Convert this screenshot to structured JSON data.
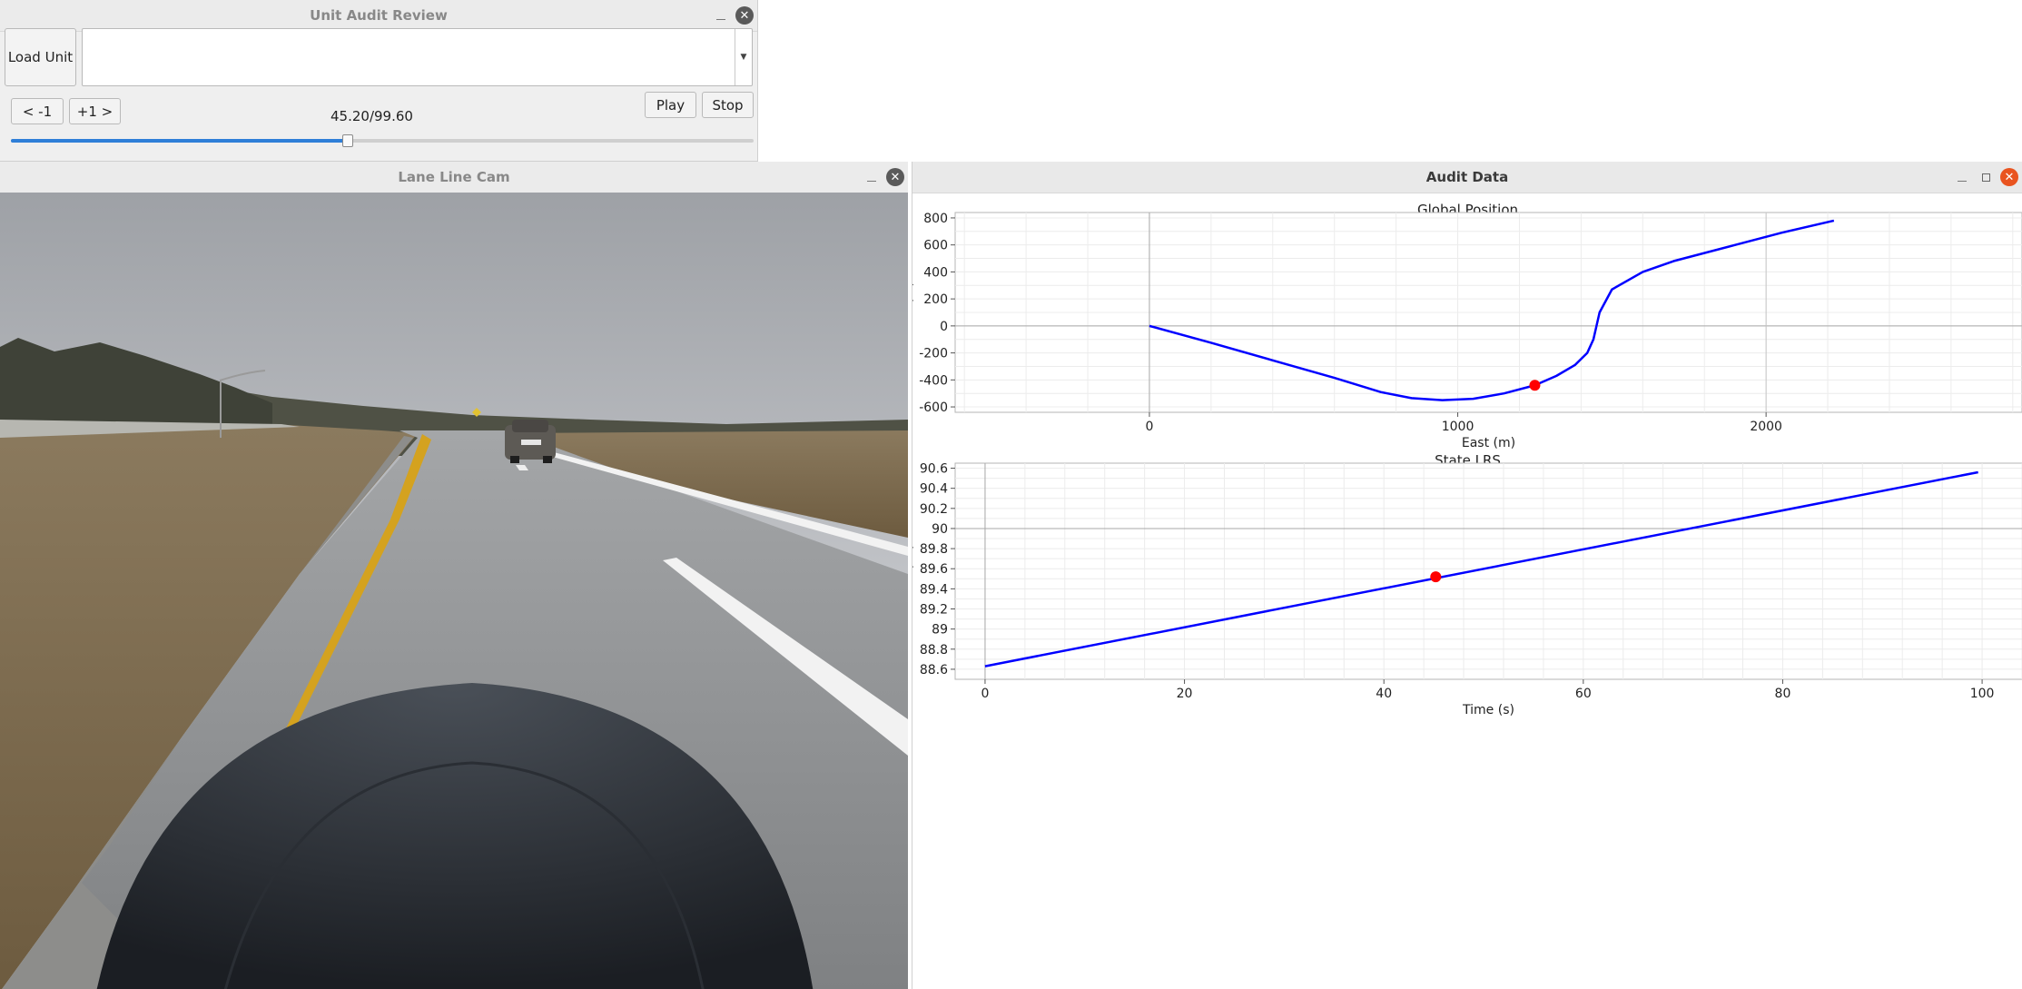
{
  "unit_audit": {
    "title": "Unit Audit Review",
    "load_button": "Load Unit",
    "unit_selector_value": "",
    "prev_button": "< -1",
    "next_button": "+1 >",
    "time_readout": "45.20/99.60",
    "play_button": "Play",
    "stop_button": "Stop",
    "slider": {
      "current": 45.2,
      "total": 99.6,
      "fraction": 0.4538
    }
  },
  "lane_cam": {
    "title": "Lane Line Cam"
  },
  "audit_data": {
    "title": "Audit Data"
  },
  "colors": {
    "path_line": "#0000ff",
    "marker": "#ff0000",
    "slider_fill": "#2f7fd8",
    "close_active": "#e9541f"
  },
  "chart_data": [
    {
      "type": "line",
      "title": "Global Position",
      "xlabel": "East (m)",
      "ylabel": "North (m)",
      "xlim": [
        -630,
        2830
      ],
      "ylim": [
        -640,
        840
      ],
      "xticks": [
        "0",
        "1000",
        "2000"
      ],
      "xtick_values": [
        0,
        1000,
        2000
      ],
      "yticks": [
        "800",
        "600",
        "400",
        "200",
        "0",
        "-200",
        "-400",
        "-600"
      ],
      "ytick_values": [
        800,
        600,
        400,
        200,
        0,
        -200,
        -400,
        -600
      ],
      "grid": true,
      "series": [
        {
          "x": [
            0,
            200,
            400,
            600,
            750,
            850,
            950,
            1050,
            1150,
            1250,
            1320,
            1380,
            1420,
            1440,
            1450,
            1460,
            1500,
            1600,
            1700,
            1900,
            2050,
            2220
          ],
          "y": [
            0,
            -125,
            -255,
            -385,
            -490,
            -535,
            -550,
            -540,
            -500,
            -440,
            -370,
            -290,
            -200,
            -100,
            0,
            100,
            270,
            400,
            480,
            600,
            690,
            780
          ]
        }
      ],
      "marker": {
        "x": 1250,
        "y": -440
      }
    },
    {
      "type": "line",
      "title": "State LRS",
      "xlabel": "Time (s)",
      "ylabel": "LRS (mi)",
      "xlim": [
        -3,
        104
      ],
      "ylim": [
        88.5,
        90.65
      ],
      "xticks": [
        "0",
        "20",
        "40",
        "60",
        "80",
        "100"
      ],
      "xtick_values": [
        0,
        20,
        40,
        60,
        80,
        100
      ],
      "yticks": [
        "90.6",
        "90.4",
        "90.2",
        "90",
        "89.8",
        "89.6",
        "89.4",
        "89.2",
        "89",
        "88.8",
        "88.6"
      ],
      "ytick_values": [
        90.6,
        90.4,
        90.2,
        90,
        89.8,
        89.6,
        89.4,
        89.2,
        89,
        88.8,
        88.6
      ],
      "grid": true,
      "series": [
        {
          "x": [
            0,
            99.6
          ],
          "y": [
            88.63,
            90.56
          ]
        }
      ],
      "marker": {
        "x": 45.2,
        "y": 89.52
      }
    }
  ]
}
